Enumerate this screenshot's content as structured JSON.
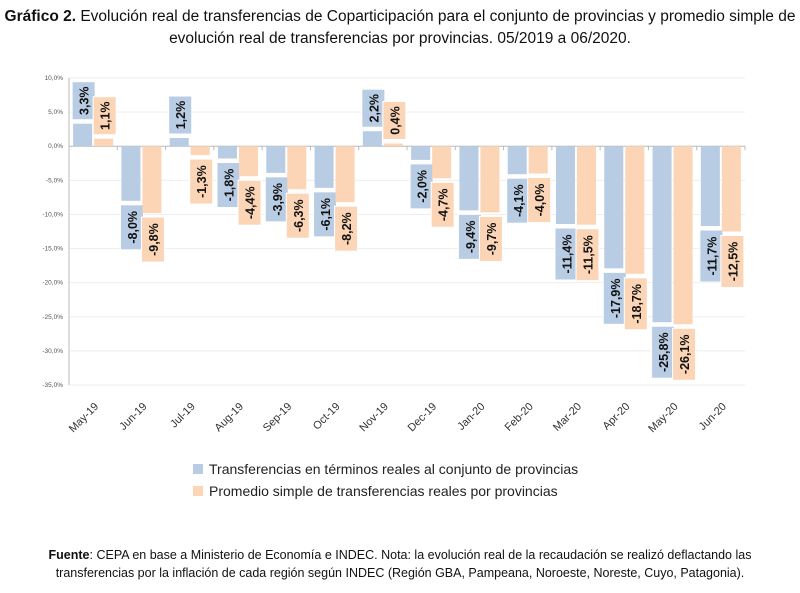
{
  "title": {
    "bold": "Gráfico 2.",
    "text": " Evolución real de transferencias de Coparticipación para el conjunto de provincias y promedio simple de evolución real de transferencias por provincias. 05/2019 a 06/2020."
  },
  "chart_data": {
    "type": "bar",
    "categories": [
      "May-19",
      "Jun-19",
      "Jul-19",
      "Aug-19",
      "Sep-19",
      "Oct-19",
      "Nov-19",
      "Dec-19",
      "Jan-20",
      "Feb-20",
      "Mar-20",
      "Apr-20",
      "May-20",
      "Jun-20"
    ],
    "series": [
      {
        "name": "Transferencias en términos reales al conjunto de provincias",
        "color": "#b8cce4",
        "values": [
          3.3,
          -8.0,
          1.2,
          -1.8,
          -3.9,
          -6.1,
          2.2,
          -2.0,
          -9.4,
          -4.1,
          -11.4,
          -17.9,
          -25.8,
          -11.7
        ]
      },
      {
        "name": "Promedio simple de transferencias reales por provincias",
        "color": "#fbd5b5",
        "values": [
          1.1,
          -9.8,
          -1.3,
          -4.4,
          -6.3,
          -8.2,
          0.4,
          -4.7,
          -9.7,
          -4.0,
          -11.5,
          -18.7,
          -26.1,
          -12.5
        ]
      }
    ],
    "yticks": [
      "10,0%",
      "5,0%",
      "0,0%",
      "-5,0%",
      "-10,0%",
      "-15,0%",
      "-20,0%",
      "-25,0%",
      "-30,0%",
      "-35,0%"
    ],
    "ylim": [
      -35,
      10
    ],
    "grid": true,
    "legend": "bottom"
  },
  "note": {
    "bold": "Fuente",
    "text": ": CEPA en base a Ministerio de Economía e INDEC. Nota: la evolución real de la recaudación se realizó deflactando las transferencias por la inflación de cada región según INDEC (Región GBA, Pampeana, Noroeste, Noreste, Cuyo, Patagonia)."
  }
}
